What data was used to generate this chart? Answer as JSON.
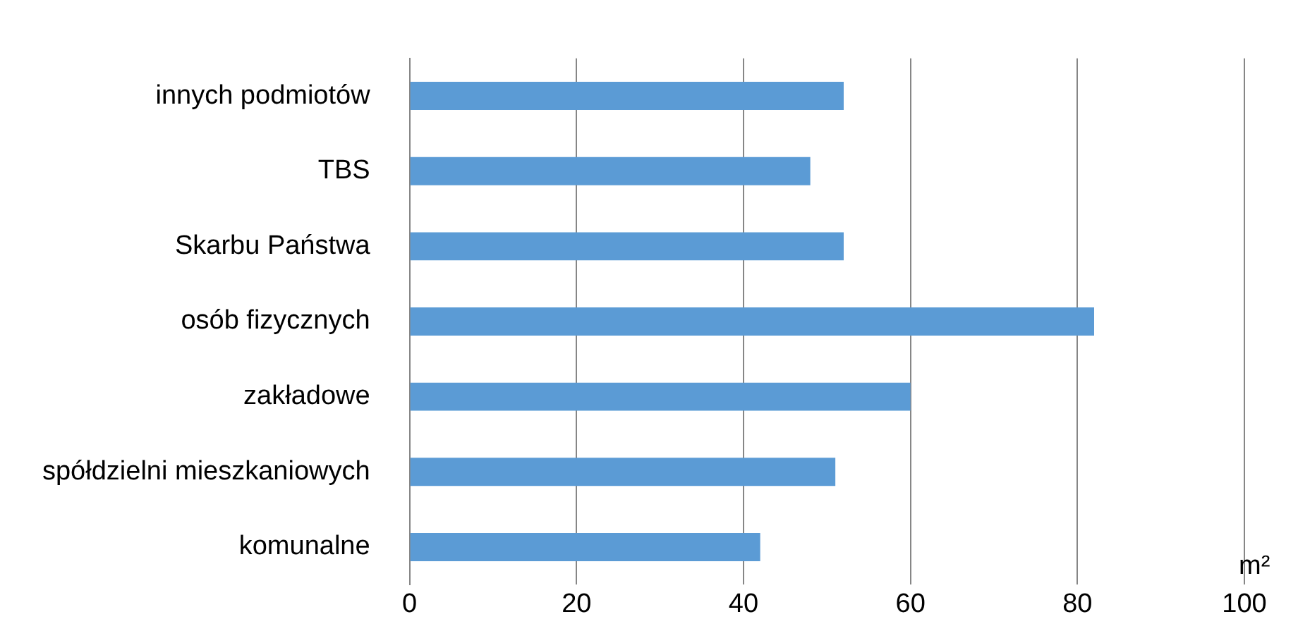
{
  "chart_data": {
    "type": "bar",
    "orientation": "horizontal",
    "xlabel": "m²",
    "categories": [
      "innych podmiotów",
      "TBS",
      "Skarbu Państwa",
      "osób fizycznych",
      "zakładowe",
      "spółdzielni mieszkaniowych",
      "komunalne"
    ],
    "values": [
      52,
      48,
      52,
      82,
      60,
      51,
      42
    ],
    "color": "#5b9bd5",
    "xlim": [
      0,
      100
    ],
    "xticks": [
      0,
      20,
      40,
      60,
      80,
      100
    ],
    "grid": "x"
  }
}
